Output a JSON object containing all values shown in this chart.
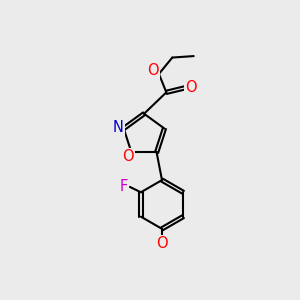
{
  "background_color": "#ebebeb",
  "bond_color": "#000000",
  "atom_colors": {
    "O": "#ff0000",
    "N": "#0000cc",
    "F": "#cc00cc",
    "H": "#008080",
    "C": "#000000"
  },
  "font_size": 10.5,
  "lw": 1.5
}
